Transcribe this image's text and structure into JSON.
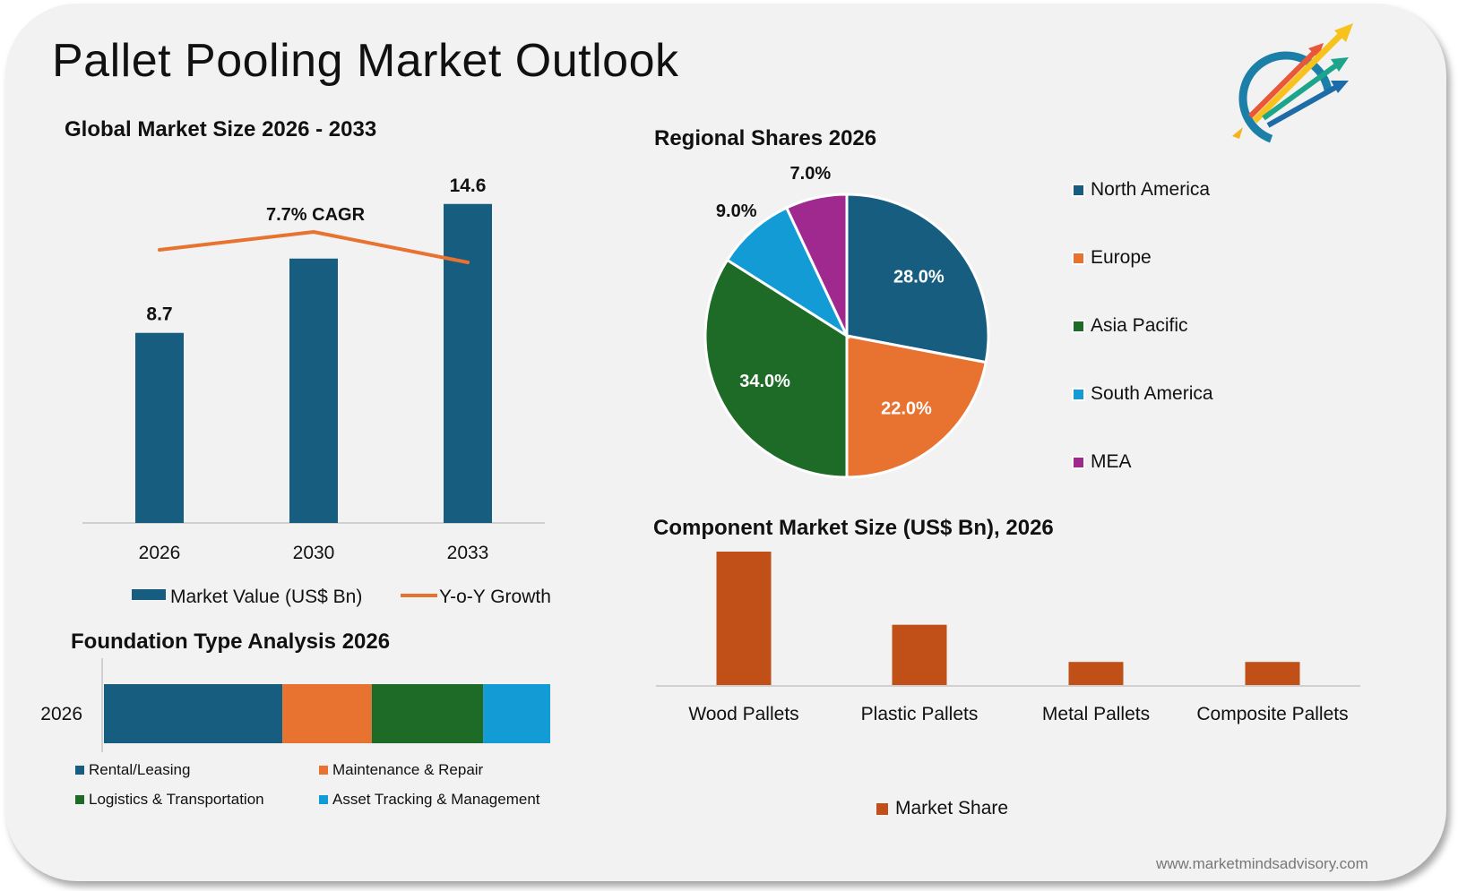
{
  "title": "Pallet Pooling Market Outlook",
  "logo": {
    "icon": "rising-arrows-logo-icon"
  },
  "website": "www.marketmindsadvisory.com",
  "colors": {
    "blue": "#175d80",
    "orange": "#e87331",
    "green": "#1d6b27",
    "sky": "#139bd6",
    "purple": "#a0298f",
    "rust": "#c05018",
    "card_bg": "#f2f2f2"
  },
  "chart_data": [
    {
      "id": "global",
      "type": "bar",
      "title": "Global Market Size 2026 - 2033",
      "categories": [
        "2026",
        "2030",
        "2033"
      ],
      "series": [
        {
          "name": "Market Value (US$ Bn)",
          "values": [
            8.7,
            12.1,
            14.6
          ],
          "labels": [
            "8.7",
            "",
            "14.6"
          ],
          "color": "#175d80"
        },
        {
          "name": "Y-o-Y Growth",
          "type": "line",
          "values": [
            7.4,
            7.7,
            7.2
          ],
          "color": "#e87331"
        }
      ],
      "annotation": "7.7% CAGR",
      "ylim": [
        0,
        16
      ],
      "legend": "bottom"
    },
    {
      "id": "regional",
      "type": "pie",
      "title": "Regional Shares 2026",
      "labels": [
        "North America",
        "Europe",
        "Asia Pacific",
        "South America",
        "MEA"
      ],
      "values": [
        28.0,
        22.0,
        34.0,
        9.0,
        7.0
      ],
      "value_labels": [
        "28.0%",
        "22.0%",
        "34.0%",
        "9.0%",
        "7.0%"
      ],
      "colors": [
        "#175d80",
        "#e87331",
        "#1d6b27",
        "#139bd6",
        "#a0298f"
      ],
      "legend": "right"
    },
    {
      "id": "foundation",
      "type": "bar",
      "orientation": "horizontal-stacked",
      "title": "Foundation Type Analysis 2026",
      "categories": [
        "2026"
      ],
      "series": [
        {
          "name": "Rental/Leasing",
          "values": [
            40
          ],
          "color": "#175d80"
        },
        {
          "name": "Maintenance & Repair",
          "values": [
            20
          ],
          "color": "#e87331"
        },
        {
          "name": "Logistics & Transportation",
          "values": [
            25
          ],
          "color": "#1d6b27"
        },
        {
          "name": "Asset Tracking & Management",
          "values": [
            15
          ],
          "color": "#139bd6"
        }
      ],
      "legend": "bottom"
    },
    {
      "id": "component",
      "type": "bar",
      "title": "Component Market Size (US$ Bn), 2026",
      "categories": [
        "Wood Pallets",
        "Plastic Pallets",
        "Metal Pallets",
        "Composite Pallets"
      ],
      "series": [
        {
          "name": "Market Share",
          "values": [
            5.2,
            2.35,
            0.9,
            0.9
          ],
          "color": "#c05018"
        }
      ],
      "ylim": [
        0,
        5.2
      ],
      "legend": "bottom"
    }
  ]
}
